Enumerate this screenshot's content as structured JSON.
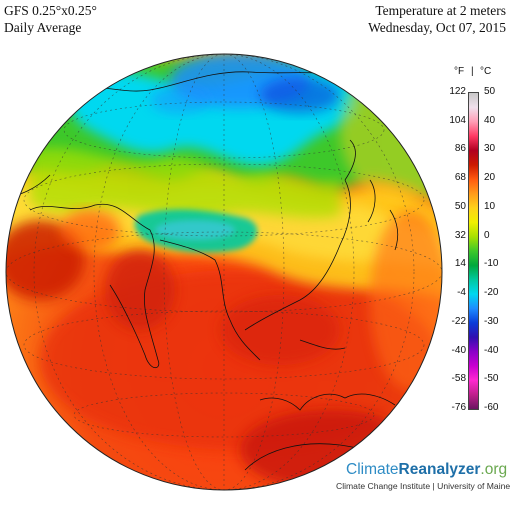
{
  "header": {
    "left_line1": "GFS 0.25°x0.25°",
    "left_line2": "Daily Average",
    "right_line1": "Temperature at 2 meters",
    "right_line2": "Wednesday, Oct 07, 2015"
  },
  "legend": {
    "unit_f": "°F",
    "unit_sep": "|",
    "unit_c": "°C",
    "fahrenheit_ticks": [
      "122",
      "104",
      "86",
      "68",
      "50",
      "32",
      "14",
      "-4",
      "-22",
      "-40",
      "-58",
      "-76"
    ],
    "celsius_ticks": [
      "50",
      "40",
      "30",
      "20",
      "10",
      "0",
      "-10",
      "-20",
      "-30",
      "-40",
      "-50",
      "-60"
    ],
    "color_stops": [
      "#c8c8c8",
      "#f0e0ec",
      "#ff9db5",
      "#ff3a64",
      "#b00020",
      "#cc1a00",
      "#ff5a10",
      "#ff9a1a",
      "#ffd21a",
      "#f0f000",
      "#a8e000",
      "#3ec82a",
      "#00a83c",
      "#00c8a0",
      "#00d8f0",
      "#1e8cff",
      "#0a3cd8",
      "#3010b0",
      "#8a00c8",
      "#c800d0",
      "#ff28d0",
      "#c0208c",
      "#6a1460"
    ]
  },
  "brand": {
    "name_part1": "Climate",
    "name_part2": "Reanalyzer",
    "name_part3": ".org",
    "subtitle": "Climate Change Institute | University of Maine"
  },
  "map": {
    "view": "orthographic globe centered on Asia",
    "variable": "2 m air temperature"
  }
}
